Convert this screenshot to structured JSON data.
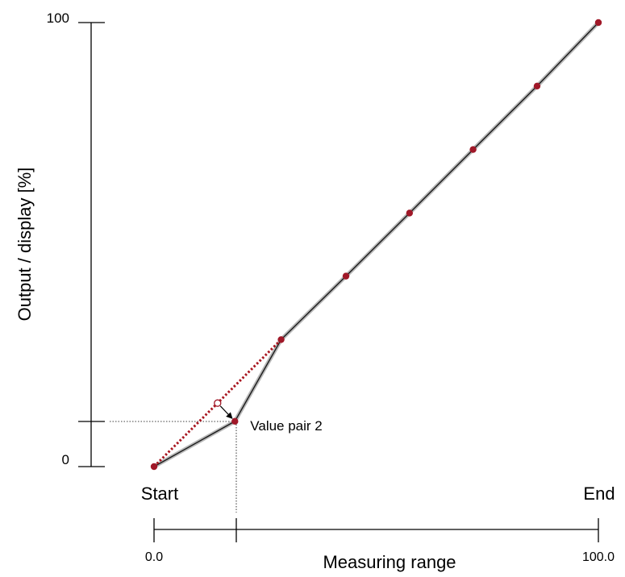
{
  "chart_data": {
    "type": "line",
    "y_axis": {
      "label": "Output / display [%]",
      "ticks": [
        "100",
        "0"
      ],
      "range": [
        0,
        100
      ]
    },
    "x_axis": {
      "label": "Measuring range",
      "start_label": "Start",
      "end_label": "End",
      "ticks": [
        "0.0",
        "100.0"
      ],
      "range": [
        0,
        100
      ]
    },
    "series": [
      {
        "style": "solid-grey-black",
        "x": [
          0,
          18.2,
          28.6,
          43.2,
          57.5,
          71.8,
          86.2,
          100
        ],
        "y": [
          0,
          10.2,
          28.6,
          42.9,
          57.1,
          71.4,
          85.7,
          100
        ]
      },
      {
        "style": "dotted-red",
        "x": [
          0,
          28.6
        ],
        "y": [
          0,
          28.6
        ]
      }
    ],
    "marker_color": "#a01828",
    "dotted_line_color": "#a8141e",
    "moved_point": {
      "x": 14.3,
      "y": 14.3
    },
    "annotation": {
      "text": "Value pair 2",
      "x": 18.2,
      "y": 10.2
    }
  }
}
